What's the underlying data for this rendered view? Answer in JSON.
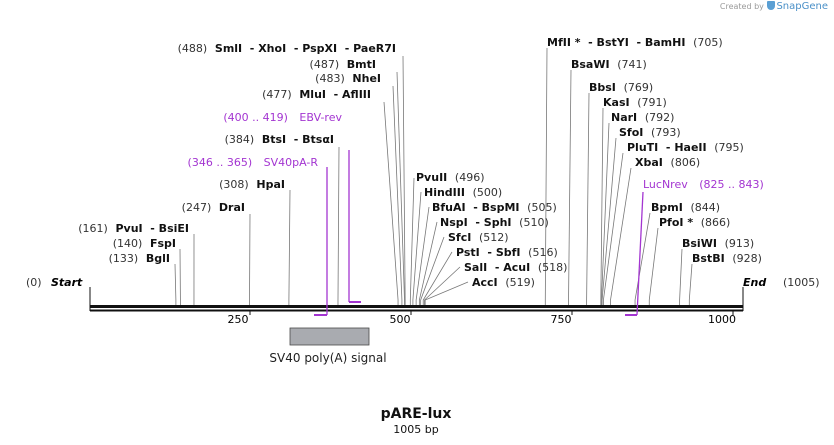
{
  "credit": {
    "text": "Created by",
    "brand": "SnapGene"
  },
  "plasmid": {
    "name": "pARE-lux",
    "length_label": "1005 bp"
  },
  "scale": {
    "ticks": [
      "250",
      "500",
      "750",
      "1000"
    ]
  },
  "ends": {
    "start_pos": "(0)",
    "start_label": "Start",
    "end_label": "End",
    "end_pos": "(1005)"
  },
  "feature": {
    "label": "SV40 poly(A) signal"
  },
  "sites": [
    {
      "text": "(488)  SmlI  - XhoI  - PspXI  - PaeR7I"
    },
    {
      "text": "(487)  BmtI"
    },
    {
      "text": "(483)  NheI"
    },
    {
      "text": "(477)  MluI  - AflIII"
    },
    {
      "text": "(384)  BtsI  - BtsαI"
    },
    {
      "text": "(308)  HpaI"
    },
    {
      "text": "(247)  DraI"
    },
    {
      "text": "(161)  PvuI  - BsiEI"
    },
    {
      "text": "(140)  FspI"
    },
    {
      "text": "(133)  BglI"
    },
    {
      "text": "PvuII  (496)"
    },
    {
      "text": "HindIII  (500)"
    },
    {
      "text": "BfuAI  - BspMI  (505)"
    },
    {
      "text": "NspI  - SphI  (510)"
    },
    {
      "text": "SfcI  (512)"
    },
    {
      "text": "PstI  - SbfI  (516)"
    },
    {
      "text": "SalI  - AcuI  (518)"
    },
    {
      "text": "AccI  (519)"
    },
    {
      "text": "MfII *  - BstYI  - BamHI  (705)"
    },
    {
      "text": "BsaWI  (741)"
    },
    {
      "text": "BbsI  (769)"
    },
    {
      "text": "KasI  (791)"
    },
    {
      "text": "NarI  (792)"
    },
    {
      "text": "SfoI  (793)"
    },
    {
      "text": "PluTI  - HaeII  (795)"
    },
    {
      "text": "XbaI  (806)"
    },
    {
      "text": "BpmI  (844)"
    },
    {
      "text": "PfoI *  (866)"
    },
    {
      "text": "BsiWI  (913)"
    },
    {
      "text": "BstBI  (928)"
    }
  ],
  "primers": [
    {
      "range": "(400 .. 419)",
      "name": "EBV-rev"
    },
    {
      "range": "(346 .. 365)",
      "name": "SV40pA-R"
    },
    {
      "range": "(825 .. 843)",
      "name": "LucNrev"
    }
  ]
}
